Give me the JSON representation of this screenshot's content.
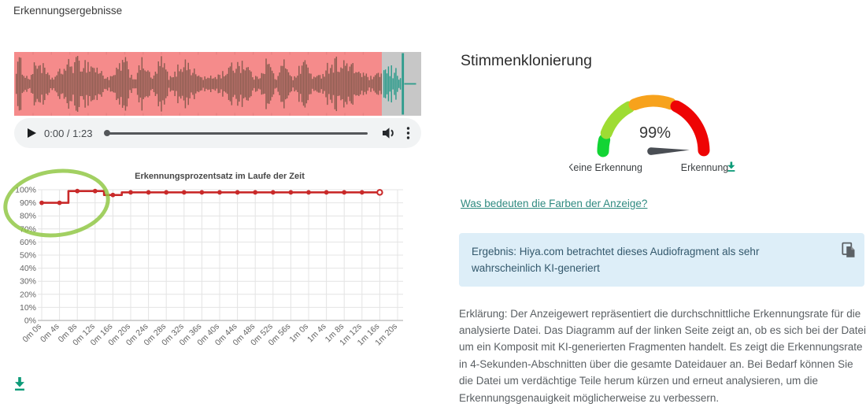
{
  "page": {
    "title": "Erkennungsergebnisse"
  },
  "player": {
    "time": "0:00 / 1:23"
  },
  "waveform": {
    "detected_bg": "#f58b8b",
    "clean_bg": "#c7c7c7",
    "main_wave_color": "#8a5c50",
    "clean_wave_color": "#2d9c8c",
    "tick_color": "#de7c7c"
  },
  "chart_data": {
    "type": "line",
    "title": "Erkennungsprozentsatz im Laufe der Zeit",
    "categories": [
      "0m 0s",
      "0m 4s",
      "0m 8s",
      "0m 12s",
      "0m 16s",
      "0m 20s",
      "0m 24s",
      "0m 28s",
      "0m 32s",
      "0m 36s",
      "0m 40s",
      "0m 44s",
      "0m 48s",
      "0m 52s",
      "0m 56s",
      "1m 0s",
      "1m 4s",
      "1m 8s",
      "1m 12s",
      "1m 16s",
      "1m 20s"
    ],
    "values": [
      90,
      90,
      99,
      99,
      96,
      98,
      98,
      98,
      98,
      98,
      98,
      98,
      98,
      98,
      98,
      98,
      98,
      98,
      98,
      98,
      null
    ],
    "ylim": [
      0,
      100
    ],
    "ytick_step": 10,
    "ytick_suffix": "%",
    "grid": true,
    "step_style": "mid",
    "line_color": "#c92a2a",
    "last_marker_open": true,
    "annotation": "green ellipse highlighting the first low data points"
  },
  "gauge": {
    "value": 99,
    "value_label": "99%",
    "min_label": "Keine Erkennung",
    "max_label": "Erkennung",
    "needle_color": "#4a4e54",
    "segments": [
      {
        "name": "low",
        "color": "#12d434",
        "from": 180,
        "to": 167
      },
      {
        "name": "low-mid",
        "color": "#9edc33",
        "from": 159,
        "to": 119
      },
      {
        "name": "mid-high",
        "color": "#f7a21c",
        "from": 112,
        "to": 70
      },
      {
        "name": "high",
        "color": "#ee0404",
        "from": 63,
        "to": 1
      }
    ]
  },
  "right": {
    "heading": "Stimmenklonierung",
    "colors_link": "Was bedeuten die Farben der Anzeige?",
    "result": {
      "text": "Ergebnis: Hiya.com betrachtet dieses Audiofragment als sehr wahrscheinlich KI-generiert"
    },
    "explanation": "Erklärung: Der Anzeigewert repräsentiert die durchschnittliche Erkennungsrate für die analysierte Datei. Das Diagramm auf der linken Seite zeigt an, ob es sich bei der Datei um ein Komposit mit KI-generierten Fragmenten handelt. Es zeigt die Erkennungsrate in 4-Sekunden-Abschnitten über die gesamte Dateidauer an. Bei Bedarf können Sie die Datei um verdächtige Teile herum kürzen und erneut analysieren, um die Erkennungsgenauigkeit möglicherweise zu verbessern."
  },
  "accent_teal": "#0d9b78"
}
